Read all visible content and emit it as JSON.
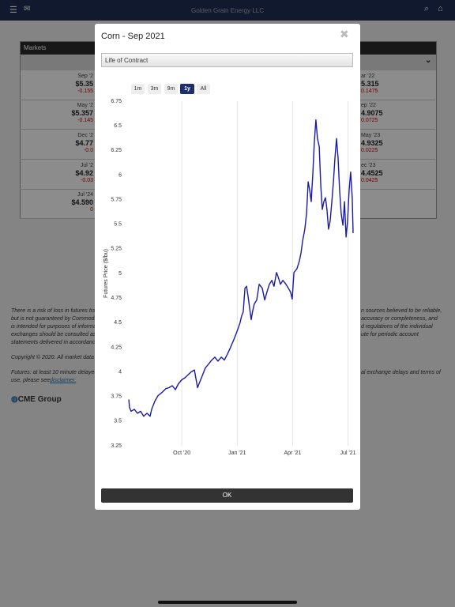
{
  "header": {
    "title": "Golden Grain Energy LLC"
  },
  "markets": {
    "title": "Markets",
    "left": [
      {
        "month": "Sep '2",
        "price": "$5.35",
        "change": "-0.155"
      },
      {
        "month": "May '2",
        "price": "$5.357",
        "change": "-0.145"
      },
      {
        "month": "Dec '2",
        "price": "$4.77",
        "change": "-0.0"
      },
      {
        "month": "Jul '2",
        "price": "$4.92",
        "change": "-0.03"
      },
      {
        "month": "Jul '24",
        "price": "$4.590",
        "change": "0"
      }
    ],
    "right": [
      {
        "month": "ar '22",
        "price": "5.315",
        "change": "0.1475"
      },
      {
        "month": "ep '22",
        "price": "4.9075",
        "change": "0.0725"
      },
      {
        "month": "May '23",
        "price": "4.9325",
        "change": "0.0225"
      },
      {
        "month": "ec '23",
        "price": "4.4525",
        "change": "0.0425"
      }
    ]
  },
  "disclaimer": {
    "left": [
      "There is a risk of loss in futures trad",
      "but is not guaranteed by Commodi",
      "is intended for purposes of informa",
      "exchanges should be consulted as",
      "statements delivered in accordance"
    ],
    "right": [
      "n sources believed to be reliable,",
      "accuracy or completeness, and",
      "d regulations of the individual",
      "ute for periodic account"
    ],
    "copyright": "Copyright © 2020. All market data i",
    "delay_left": "Futures: at least 10 minute delayed",
    "delay_right": "al exchange delays and terms of",
    "see": "use, please see",
    "link": "disclaimer."
  },
  "cme": "CME Group",
  "modal": {
    "title": "Corn - Sep 2021",
    "select": "Life of Contract",
    "ranges": [
      "1m",
      "3m",
      "9m",
      "1y",
      "All"
    ],
    "active_range": "1y",
    "ok": "OK"
  },
  "chart_data": {
    "type": "line",
    "y_label": "Futures Price ($/bu)",
    "color": "#1a1aa8",
    "x": [
      2020.511,
      2020.514,
      2020.521,
      2020.536,
      2020.55,
      2020.564,
      2020.578,
      2020.593,
      2020.607,
      2020.614,
      2020.628,
      2020.643,
      2020.66,
      2020.678,
      2020.692,
      2020.707,
      2020.721,
      2020.735,
      2020.75,
      2020.764,
      2020.778,
      2020.792,
      2020.807,
      2020.821,
      2020.828,
      2020.842,
      2020.856,
      2020.871,
      2020.885,
      2020.899,
      2020.913,
      2020.928,
      2020.942,
      2020.956,
      2020.97,
      2020.985,
      2020.999,
      2021.013,
      2021.02,
      2021.027,
      2021.035,
      2021.042,
      2021.049,
      2021.056,
      2021.063,
      2021.07,
      2021.077,
      2021.088,
      2021.099,
      2021.113,
      2021.124,
      2021.134,
      2021.145,
      2021.156,
      2021.166,
      2021.177,
      2021.184,
      2021.195,
      2021.206,
      2021.22,
      2021.231,
      2021.241,
      2021.248,
      2021.256,
      2021.27,
      2021.281,
      2021.288,
      2021.295,
      2021.305,
      2021.313,
      2021.32,
      2021.327,
      2021.334,
      2021.341,
      2021.348,
      2021.355,
      2021.362,
      2021.37,
      2021.377,
      2021.384,
      2021.391,
      2021.398,
      2021.405,
      2021.412,
      2021.419,
      2021.427,
      2021.434,
      2021.441,
      2021.448,
      2021.455,
      2021.462,
      2021.469,
      2021.477,
      2021.484,
      2021.491,
      2021.498,
      2021.505,
      2021.512,
      2021.519,
      2021.523
    ],
    "values": [
      3.72,
      3.64,
      3.6,
      3.62,
      3.58,
      3.6,
      3.55,
      3.58,
      3.55,
      3.62,
      3.7,
      3.76,
      3.79,
      3.83,
      3.84,
      3.86,
      3.82,
      3.88,
      3.92,
      3.94,
      3.97,
      4.0,
      4.02,
      3.84,
      3.88,
      3.96,
      4.04,
      4.08,
      4.12,
      4.15,
      4.11,
      4.15,
      4.12,
      4.18,
      4.25,
      4.33,
      4.41,
      4.5,
      4.57,
      4.61,
      4.85,
      4.87,
      4.77,
      4.65,
      4.53,
      4.62,
      4.69,
      4.73,
      4.89,
      4.85,
      4.73,
      4.81,
      4.89,
      4.93,
      4.87,
      5.01,
      4.97,
      4.89,
      4.93,
      4.89,
      4.85,
      4.81,
      4.74,
      5.01,
      5.05,
      5.13,
      5.21,
      5.33,
      5.45,
      5.61,
      5.93,
      5.85,
      5.73,
      6.01,
      6.33,
      6.56,
      6.37,
      6.29,
      5.89,
      5.65,
      5.73,
      5.77,
      5.65,
      5.45,
      5.53,
      5.73,
      5.93,
      6.17,
      6.37,
      6.17,
      5.85,
      5.61,
      5.49,
      5.73,
      5.37,
      5.53,
      5.85,
      6.03,
      5.77,
      5.41
    ],
    "xlim": [
      2020.5,
      2021.53
    ],
    "xticks": [
      {
        "value": 2020.75,
        "label": "Oct '20"
      },
      {
        "value": 2021.0,
        "label": "Jan '21"
      },
      {
        "value": 2021.25,
        "label": "Apr '21"
      },
      {
        "value": 2021.5,
        "label": "Jul '21"
      }
    ],
    "ylim": [
      3.25,
      6.75
    ],
    "yticks": [
      3.25,
      3.5,
      3.75,
      4,
      4.25,
      4.5,
      4.75,
      5,
      5.25,
      5.5,
      5.75,
      6,
      6.25,
      6.5,
      6.75
    ],
    "grid_x": true
  }
}
